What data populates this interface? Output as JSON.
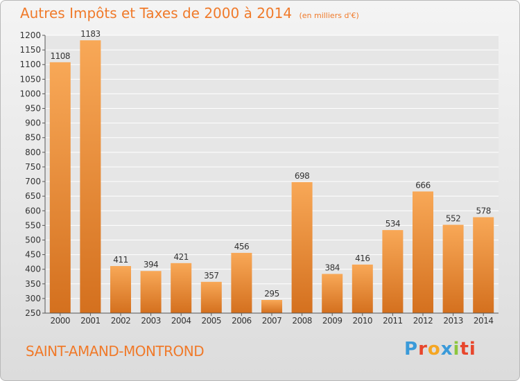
{
  "title": "Autres Impôts et Taxes de 2000 à 2014",
  "subtitle": "(en milliers d'€)",
  "town": "SAINT-AMAND-MONTROND",
  "logo": [
    "P",
    "r",
    "o",
    "x",
    "i",
    "ti"
  ],
  "colors": {
    "accent": "#f07a2a",
    "bar_top": "#f8a857",
    "bar_bottom": "#d4701e"
  },
  "chart_data": {
    "type": "bar",
    "categories": [
      "2000",
      "2001",
      "2002",
      "2003",
      "2004",
      "2005",
      "2006",
      "2007",
      "2008",
      "2009",
      "2010",
      "2011",
      "2012",
      "2013",
      "2014"
    ],
    "values": [
      1108,
      1183,
      411,
      394,
      421,
      357,
      456,
      295,
      698,
      384,
      416,
      534,
      666,
      552,
      578
    ],
    "ylim": [
      250,
      1200
    ],
    "yticks": [
      250,
      300,
      350,
      400,
      450,
      500,
      550,
      600,
      650,
      700,
      750,
      800,
      850,
      900,
      950,
      1000,
      1050,
      1100,
      1150,
      1200
    ],
    "grid": true
  }
}
